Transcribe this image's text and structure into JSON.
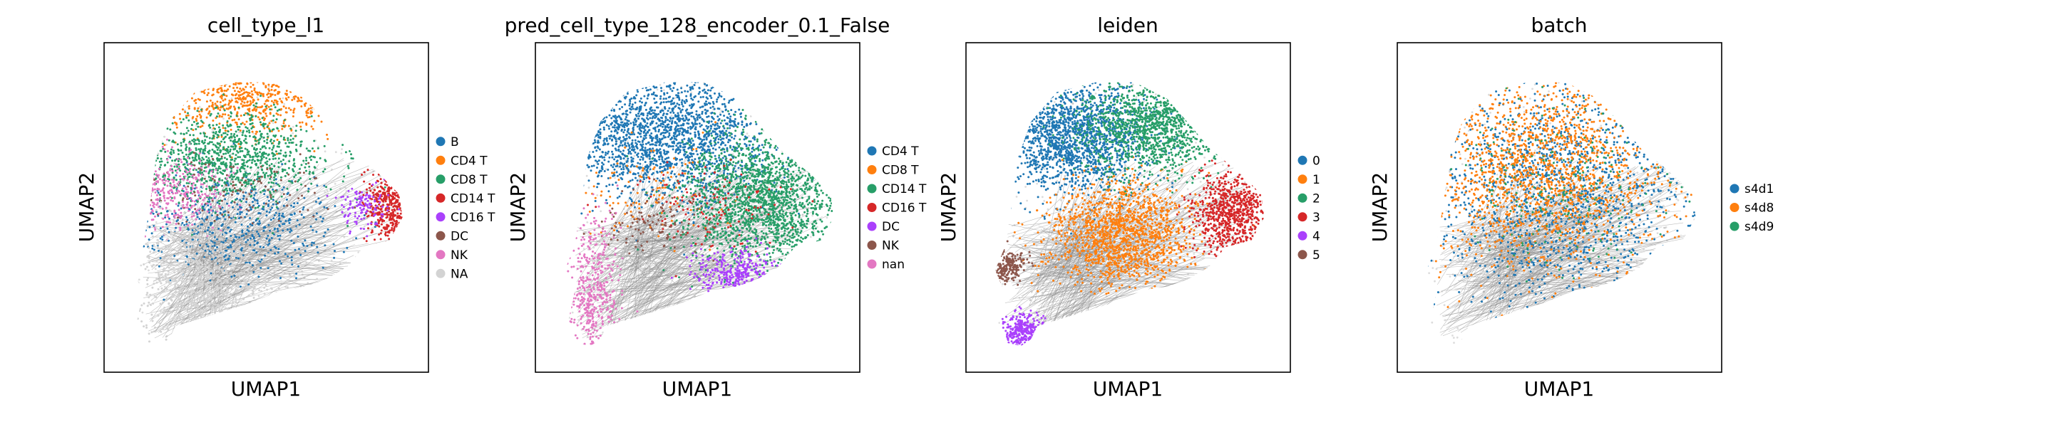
{
  "chart_data": [
    {
      "type": "scatter",
      "title": "cell_type_l1",
      "xlabel": "UMAP1",
      "ylabel": "UMAP2",
      "grid": false,
      "legend_placement": "right",
      "series": [
        {
          "name": "B",
          "color": "#1f77b4",
          "region": {
            "cx": 0.4,
            "cy": 0.45,
            "rx": 0.3,
            "ry": 0.14
          },
          "weight": 5
        },
        {
          "name": "CD4 T",
          "color": "#ff7f0e",
          "region": {
            "cx": 0.45,
            "cy": 0.83,
            "rx": 0.26,
            "ry": 0.1
          },
          "weight": 6
        },
        {
          "name": "CD8 T",
          "color": "#279e68",
          "region": {
            "cx": 0.38,
            "cy": 0.65,
            "rx": 0.28,
            "ry": 0.12
          },
          "weight": 9
        },
        {
          "name": "CD14 T",
          "color": "#d62728",
          "region": {
            "cx": 0.88,
            "cy": 0.5,
            "rx": 0.07,
            "ry": 0.1
          },
          "weight": 4
        },
        {
          "name": "CD16 T",
          "color": "#aa40fc",
          "region": {
            "cx": 0.8,
            "cy": 0.5,
            "rx": 0.06,
            "ry": 0.06
          },
          "weight": 1
        },
        {
          "name": "DC",
          "color": "#8c564b",
          "region": {
            "cx": 0.4,
            "cy": 0.55,
            "rx": 0.25,
            "ry": 0.1
          },
          "weight": 1
        },
        {
          "name": "NK",
          "color": "#e377c2",
          "region": {
            "cx": 0.2,
            "cy": 0.55,
            "rx": 0.15,
            "ry": 0.1
          },
          "weight": 3
        },
        {
          "name": "NA",
          "color": "#d3d3d3",
          "region": {
            "cx": 0.3,
            "cy": 0.28,
            "rx": 0.22,
            "ry": 0.18
          },
          "weight": 8
        }
      ]
    },
    {
      "type": "scatter",
      "title": "pred_cell_type_128_encoder_0.1_False",
      "xlabel": "UMAP1",
      "ylabel": "UMAP2",
      "grid": false,
      "legend_placement": "right",
      "series": [
        {
          "name": "CD4 T",
          "color": "#1f77b4",
          "region": {
            "cx": 0.4,
            "cy": 0.72,
            "rx": 0.3,
            "ry": 0.18
          },
          "weight": 18
        },
        {
          "name": "CD8 T",
          "color": "#ff7f0e",
          "region": {
            "cx": 0.35,
            "cy": 0.55,
            "rx": 0.25,
            "ry": 0.15
          },
          "weight": 1
        },
        {
          "name": "CD14 T",
          "color": "#279e68",
          "region": {
            "cx": 0.7,
            "cy": 0.52,
            "rx": 0.22,
            "ry": 0.18
          },
          "weight": 16
        },
        {
          "name": "CD16 T",
          "color": "#d62728",
          "region": {
            "cx": 0.55,
            "cy": 0.5,
            "rx": 0.2,
            "ry": 0.12
          },
          "weight": 1
        },
        {
          "name": "DC",
          "color": "#aa40fc",
          "region": {
            "cx": 0.62,
            "cy": 0.3,
            "rx": 0.12,
            "ry": 0.06
          },
          "weight": 3
        },
        {
          "name": "NK",
          "color": "#8c564b",
          "region": {
            "cx": 0.35,
            "cy": 0.45,
            "rx": 0.15,
            "ry": 0.08
          },
          "weight": 1
        },
        {
          "name": "nan",
          "color": "#e377c2",
          "region": {
            "cx": 0.18,
            "cy": 0.25,
            "rx": 0.07,
            "ry": 0.2
          },
          "weight": 4
        }
      ]
    },
    {
      "type": "scatter",
      "title": "leiden",
      "xlabel": "UMAP1",
      "ylabel": "UMAP2",
      "grid": false,
      "legend_placement": "right",
      "series": [
        {
          "name": "0",
          "color": "#1f77b4",
          "region": {
            "cx": 0.32,
            "cy": 0.72,
            "rx": 0.22,
            "ry": 0.16
          },
          "weight": 16
        },
        {
          "name": "1",
          "color": "#ff7f0e",
          "region": {
            "cx": 0.48,
            "cy": 0.42,
            "rx": 0.2,
            "ry": 0.14
          },
          "weight": 12
        },
        {
          "name": "2",
          "color": "#279e68",
          "region": {
            "cx": 0.58,
            "cy": 0.75,
            "rx": 0.2,
            "ry": 0.14
          },
          "weight": 12
        },
        {
          "name": "3",
          "color": "#d62728",
          "region": {
            "cx": 0.82,
            "cy": 0.48,
            "rx": 0.11,
            "ry": 0.12
          },
          "weight": 7
        },
        {
          "name": "4",
          "color": "#aa40fc",
          "region": {
            "cx": 0.18,
            "cy": 0.12,
            "rx": 0.06,
            "ry": 0.05
          },
          "weight": 3
        },
        {
          "name": "5",
          "color": "#8c564b",
          "region": {
            "cx": 0.13,
            "cy": 0.32,
            "rx": 0.05,
            "ry": 0.04
          },
          "weight": 2
        }
      ]
    },
    {
      "type": "scatter",
      "title": "batch",
      "xlabel": "UMAP1",
      "ylabel": "UMAP2",
      "grid": false,
      "legend_placement": "right",
      "series": [
        {
          "name": "s4d1",
          "color": "#1f77b4",
          "region": {
            "cx": 0.5,
            "cy": 0.55,
            "rx": 0.38,
            "ry": 0.32
          },
          "weight": 14
        },
        {
          "name": "s4d8",
          "color": "#ff7f0e",
          "region": {
            "cx": 0.45,
            "cy": 0.62,
            "rx": 0.35,
            "ry": 0.28
          },
          "weight": 16
        },
        {
          "name": "s4d9",
          "color": "#279e68",
          "region": {
            "cx": 0.5,
            "cy": 0.55,
            "rx": 0.3,
            "ry": 0.25
          },
          "weight": 2
        }
      ]
    }
  ]
}
